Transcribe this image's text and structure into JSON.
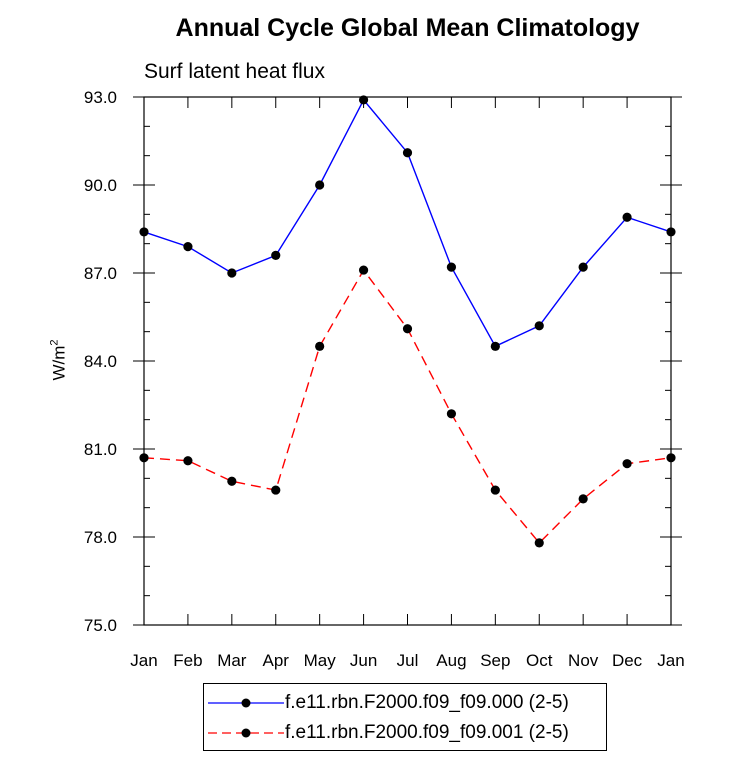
{
  "chart_data": {
    "type": "line",
    "title": "Annual Cycle Global Mean Climatology",
    "subtitle": "Surf latent heat flux",
    "xlabel": "",
    "ylabel": "W/m",
    "ylabel_sup": "2",
    "categories": [
      "Jan",
      "Feb",
      "Mar",
      "Apr",
      "May",
      "Jun",
      "Jul",
      "Aug",
      "Sep",
      "Oct",
      "Nov",
      "Dec",
      "Jan"
    ],
    "ylim": [
      75.0,
      93.0
    ],
    "yticks": [
      "75.0",
      "78.0",
      "81.0",
      "84.0",
      "87.0",
      "90.0",
      "93.0"
    ],
    "series": [
      {
        "name": "f.e11.rbn.F2000.f09_f09.000 (2-5)",
        "color": "#0000ff",
        "dash": "solid",
        "values": [
          88.4,
          87.9,
          87.0,
          87.6,
          90.0,
          92.9,
          91.1,
          87.2,
          84.5,
          85.2,
          87.2,
          88.9,
          88.4
        ]
      },
      {
        "name": "f.e11.rbn.F2000.f09_f09.001 (2-5)",
        "color": "#ff0000",
        "dash": "dashed",
        "values": [
          80.7,
          80.6,
          79.9,
          79.6,
          84.5,
          87.1,
          85.1,
          82.2,
          79.6,
          77.8,
          79.3,
          80.5,
          80.7
        ]
      }
    ],
    "legend_position": "bottom-center",
    "grid": false
  }
}
